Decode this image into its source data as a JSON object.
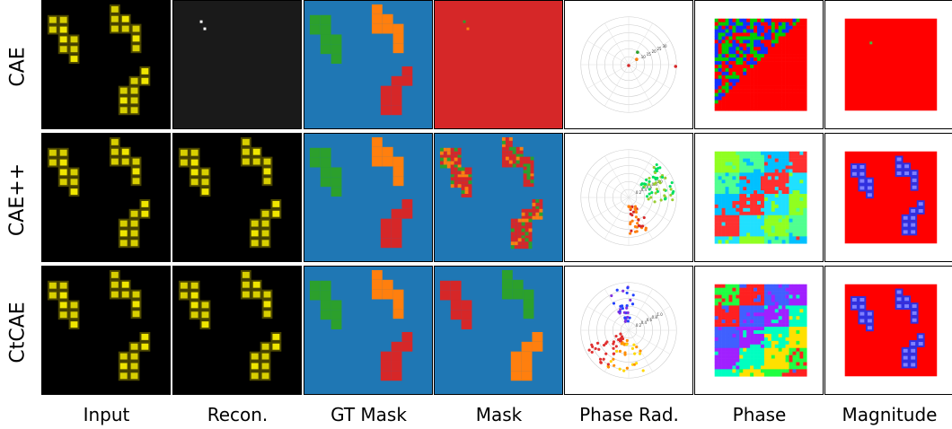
{
  "rows": [
    "CAE",
    "CAE++",
    "CtCAE"
  ],
  "columns": [
    "Input",
    "Recon.",
    "GT Mask",
    "Mask",
    "Phase Rad.",
    "Phase",
    "Magnitude"
  ],
  "polar_ticks": {
    "CAE": [
      "5",
      "10",
      "15",
      "20",
      "25",
      "30"
    ],
    "CAE++": [
      "0.2",
      "0.4",
      "0.6",
      "0.8",
      "1.0"
    ],
    "CtCAE": [
      "0.2",
      "0.4",
      "0.6",
      "0.8",
      "1.0"
    ]
  },
  "colors": {
    "shape_yellow": "#d8cf00",
    "gt_background": "#1f77b4",
    "object_green": "#2ca02c",
    "object_orange": "#ff7f0e",
    "object_red": "#d62728"
  }
}
